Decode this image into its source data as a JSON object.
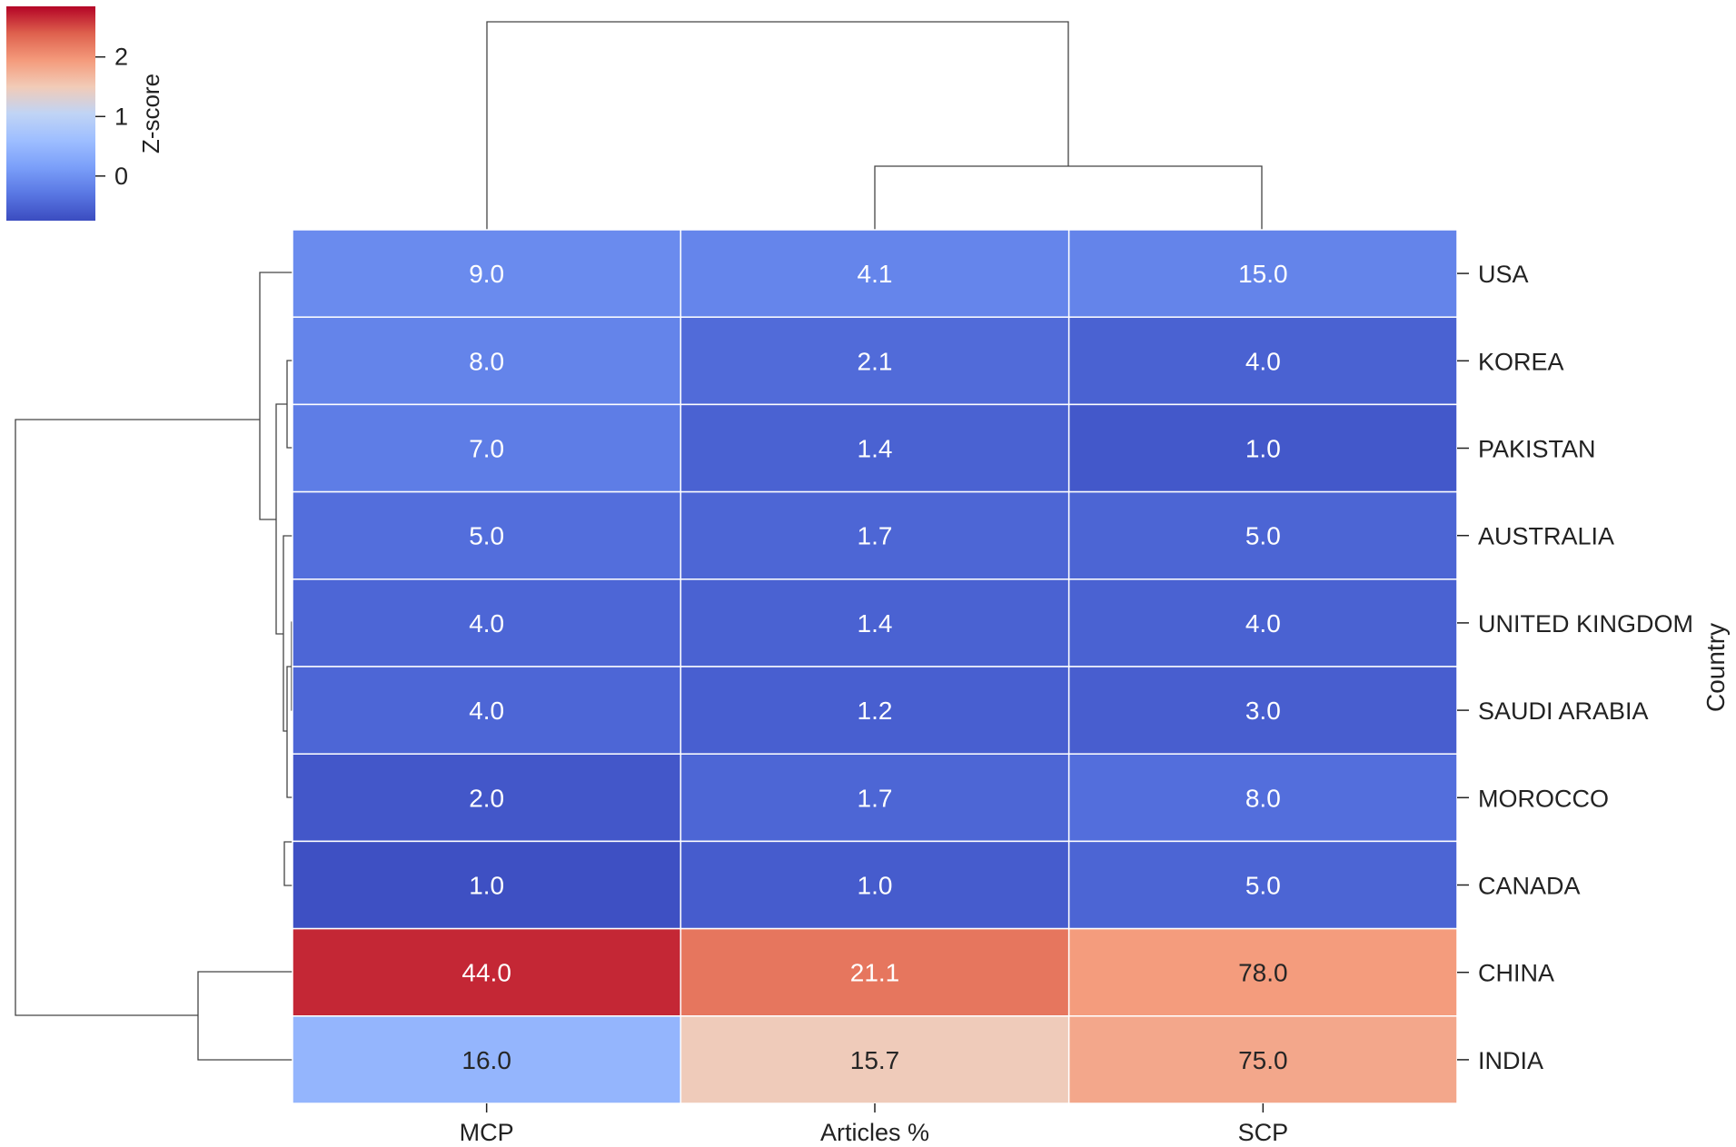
{
  "chart_data": {
    "type": "heatmap",
    "columns": [
      "MCP",
      "Articles %",
      "SCP"
    ],
    "rows": [
      "USA",
      "KOREA",
      "PAKISTAN",
      "AUSTRALIA",
      "UNITED KINGDOM",
      "SAUDI ARABIA",
      "MOROCCO",
      "CANADA",
      "CHINA",
      "INDIA"
    ],
    "values": [
      [
        9.0,
        4.1,
        15.0
      ],
      [
        8.0,
        2.1,
        4.0
      ],
      [
        7.0,
        1.4,
        1.0
      ],
      [
        5.0,
        1.7,
        5.0
      ],
      [
        4.0,
        1.4,
        4.0
      ],
      [
        4.0,
        1.2,
        3.0
      ],
      [
        2.0,
        1.7,
        8.0
      ],
      [
        1.0,
        1.0,
        5.0
      ],
      [
        44.0,
        21.1,
        78.0
      ],
      [
        16.0,
        15.7,
        75.0
      ]
    ],
    "value_labels": [
      [
        "9.0",
        "4.1",
        "15.0"
      ],
      [
        "8.0",
        "2.1",
        "4.0"
      ],
      [
        "7.0",
        "1.4",
        "1.0"
      ],
      [
        "5.0",
        "1.7",
        "5.0"
      ],
      [
        "4.0",
        "1.4",
        "4.0"
      ],
      [
        "4.0",
        "1.2",
        "3.0"
      ],
      [
        "2.0",
        "1.7",
        "8.0"
      ],
      [
        "1.0",
        "1.0",
        "5.0"
      ],
      [
        "44.0",
        "21.1",
        "78.0"
      ],
      [
        "16.0",
        "15.7",
        "75.0"
      ]
    ],
    "ylabel": "Country",
    "colorbar": {
      "label": "Z-score",
      "colormap": "coolwarm",
      "range": [
        -0.75,
        2.85
      ],
      "ticks": [
        0,
        1,
        2
      ],
      "tick_labels": [
        "0",
        "1",
        "2"
      ]
    },
    "row_dendrogram": true,
    "column_dendrogram": true
  }
}
